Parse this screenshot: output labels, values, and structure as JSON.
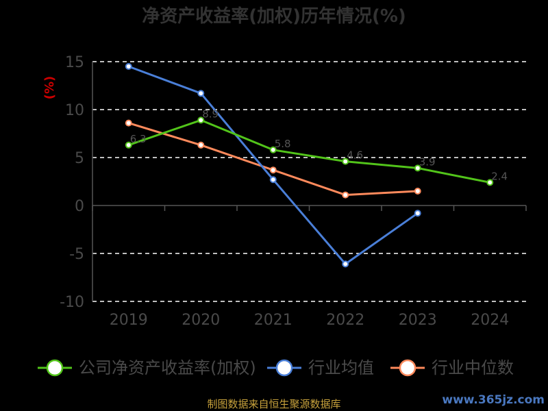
{
  "chart_data": {
    "type": "line",
    "title": "净资产收益率(加权)历年情况(%)",
    "ylabel": "(%)",
    "categories": [
      "2019",
      "2020",
      "2021",
      "2022",
      "2023",
      "2024"
    ],
    "ylim": [
      -10,
      15
    ],
    "yticks": [
      15,
      10,
      5,
      0,
      -5,
      -10
    ],
    "grid": true,
    "legend_position": "bottom",
    "series": [
      {
        "name": "公司净资产收益率(加权)",
        "color": "#52c41a",
        "values": [
          6.3,
          8.9,
          5.8,
          4.6,
          3.9,
          2.4
        ]
      },
      {
        "name": "行业均值",
        "color": "#4a7fd8",
        "values": [
          14.5,
          11.7,
          2.7,
          -6.1,
          -0.8,
          null
        ]
      },
      {
        "name": "行业中位数",
        "color": "#ff8a5c",
        "values": [
          8.6,
          6.3,
          3.7,
          1.1,
          1.5,
          null
        ]
      }
    ],
    "data_labels": [
      "6.3",
      "8.9",
      "5.8",
      "4.6",
      "3.9",
      "2.4"
    ]
  },
  "source": "制图数据来自恒生聚源数据库",
  "watermark": "www.365jz.com"
}
